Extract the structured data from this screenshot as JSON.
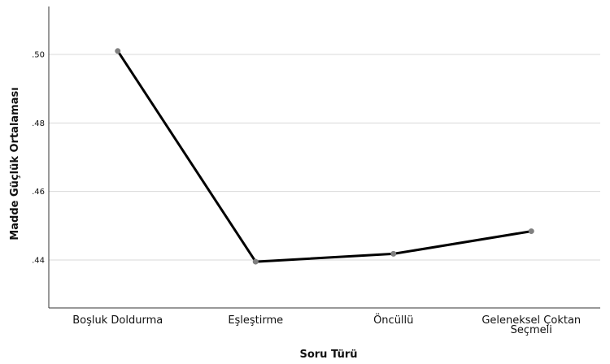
{
  "chart_data": {
    "type": "line",
    "title": "",
    "xlabel": "Soru Türü",
    "ylabel": "Madde Güçlük Ortalaması",
    "categories": [
      "Boşluk Doldurma",
      "Eşleştirme",
      "Öncüllü",
      "Geleneksel Çoktan Seçmeli"
    ],
    "category_lines": [
      [
        "Boşluk Doldurma"
      ],
      [
        "Eşleştirme"
      ],
      [
        "Öncüllü"
      ],
      [
        "Geleneksel Çoktan",
        "Seçmeli"
      ]
    ],
    "series": [
      {
        "values": [
          0.501,
          0.4395,
          0.4418,
          0.4484
        ]
      }
    ],
    "ylim": [
      0.426,
      0.514
    ],
    "yticks": [
      0.44,
      0.46,
      0.48,
      0.5
    ],
    "ytick_labels": [
      ".44",
      ".46",
      ".48",
      ".50"
    ],
    "grid": "horizontal",
    "legend": "none",
    "line_color": "#000000",
    "marker_color": "#808080",
    "grid_color": "#d9d9d9"
  }
}
